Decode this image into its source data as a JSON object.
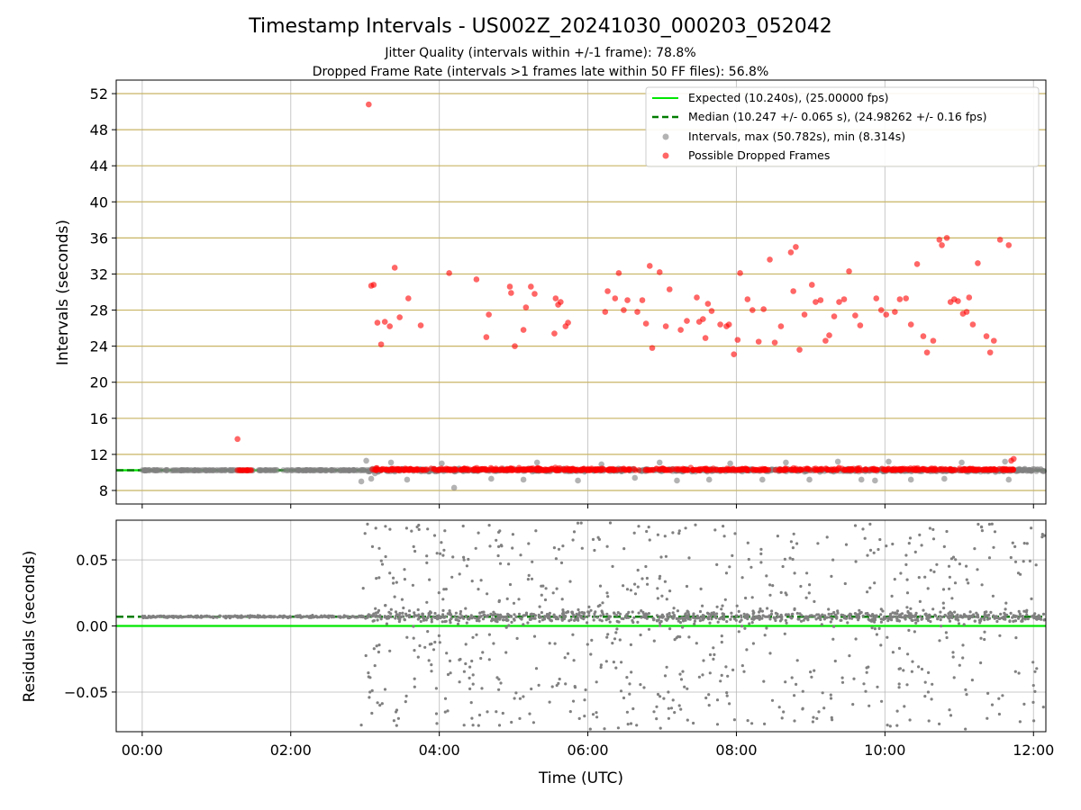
{
  "title": "Timestamp Intervals - US002Z_20241030_000203_052042",
  "subtitle1": "Jitter Quality (intervals within +/-1 frame): 78.8%",
  "subtitle2": "Dropped Frame Rate (intervals >1 frames late within 50 FF files): 56.8%",
  "colors": {
    "expected": "#00e600",
    "median": "#007d00",
    "intervals": "#808080",
    "dropped": "#ff0000",
    "gridline": "#c8b464"
  },
  "chart_data": [
    {
      "type": "scatter",
      "ylabel": "Intervals (seconds)",
      "xlim": [
        "-00:21",
        "12:10"
      ],
      "ylim": [
        6.5,
        53.5
      ],
      "y_ticks": [
        "8",
        "12",
        "16",
        "20",
        "24",
        "28",
        "32",
        "36",
        "40",
        "44",
        "48",
        "52"
      ],
      "grid": true,
      "legend_position": "top-right",
      "legend": [
        "Expected (10.240s), (25.00000 fps)",
        "Median (10.247 +/- 0.065 s), (24.98262 +/- 0.16 fps)",
        "Intervals, max (50.782s), min (8.314s)",
        "Possible Dropped Frames"
      ],
      "series": [
        {
          "name": "Expected (10.240s), (25.00000 fps)",
          "kind": "hline",
          "y": 10.24
        },
        {
          "name": "Median (10.247 +/- 0.065 s), (24.98262 +/- 0.16 fps)",
          "kind": "hline",
          "y": 10.247
        },
        {
          "name": "Intervals, max (50.782s), min (8.314s)",
          "kind": "scatter",
          "band": {
            "x_from": "00:00",
            "x_to": "12:10",
            "y": 10.24
          },
          "x": [
            "02:57",
            "03:01",
            "03:05",
            "03:08",
            "03:21",
            "03:34",
            "04:02",
            "04:12",
            "04:42",
            "05:08",
            "05:19",
            "05:52",
            "06:11",
            "06:38",
            "06:58",
            "07:12",
            "07:38",
            "07:55",
            "08:21",
            "08:40",
            "08:59",
            "09:22",
            "09:41",
            "09:52",
            "10:03",
            "10:21",
            "10:48",
            "11:02",
            "11:37",
            "11:40"
          ],
          "y": [
            9.0,
            11.3,
            9.3,
            9.9,
            11.1,
            9.2,
            11.0,
            8.3,
            9.3,
            9.2,
            11.1,
            9.1,
            10.9,
            9.4,
            11.1,
            9.1,
            9.2,
            11.0,
            9.2,
            11.1,
            9.2,
            11.2,
            9.2,
            9.1,
            11.2,
            9.2,
            9.3,
            11.1,
            11.2,
            9.2
          ]
        },
        {
          "name": "Possible Dropped Frames",
          "kind": "scatter",
          "band": {
            "segments": [
              [
                "01:17",
                "01:28"
              ],
              [
                "03:04",
                "11:44"
              ]
            ],
            "y": 10.24
          },
          "x": [
            "01:17",
            "03:03",
            "03:05",
            "03:07",
            "03:10",
            "03:13",
            "03:16",
            "03:20",
            "03:24",
            "03:28",
            "03:35",
            "03:45",
            "04:08",
            "04:30",
            "04:38",
            "04:40",
            "04:57",
            "04:58",
            "05:01",
            "05:08",
            "05:10",
            "05:14",
            "05:17",
            "05:33",
            "05:34",
            "05:36",
            "05:38",
            "05:42",
            "05:44",
            "06:14",
            "06:16",
            "06:22",
            "06:25",
            "06:29",
            "06:32",
            "06:40",
            "06:44",
            "06:47",
            "06:50",
            "06:52",
            "06:58",
            "07:03",
            "07:06",
            "07:15",
            "07:20",
            "07:28",
            "07:30",
            "07:33",
            "07:35",
            "07:37",
            "07:40",
            "07:47",
            "07:52",
            "07:54",
            "07:58",
            "08:01",
            "08:03",
            "08:09",
            "08:13",
            "08:18",
            "08:22",
            "08:27",
            "08:31",
            "08:36",
            "08:44",
            "08:46",
            "08:48",
            "08:51",
            "08:55",
            "09:01",
            "09:04",
            "09:08",
            "09:12",
            "09:15",
            "09:19",
            "09:23",
            "09:27",
            "09:31",
            "09:36",
            "09:40",
            "09:53",
            "09:57",
            "10:01",
            "10:08",
            "10:12",
            "10:17",
            "10:21",
            "10:26",
            "10:31",
            "10:34",
            "10:39",
            "10:44",
            "10:46",
            "10:50",
            "10:53",
            "10:56",
            "10:59",
            "11:03",
            "11:06",
            "11:08",
            "11:11",
            "11:15",
            "11:22",
            "11:25",
            "11:28",
            "11:33",
            "11:40",
            "11:42",
            "11:44"
          ],
          "y": [
            13.7,
            50.8,
            30.7,
            30.8,
            26.6,
            24.2,
            26.7,
            26.2,
            32.7,
            27.2,
            29.3,
            26.3,
            32.1,
            31.4,
            25.0,
            27.5,
            30.6,
            29.9,
            24.0,
            25.8,
            28.3,
            30.6,
            29.8,
            25.4,
            29.3,
            28.6,
            28.9,
            26.2,
            26.6,
            27.8,
            30.1,
            29.3,
            32.1,
            28.0,
            29.1,
            27.8,
            29.1,
            26.5,
            32.9,
            23.8,
            32.2,
            26.2,
            30.3,
            25.8,
            26.8,
            29.4,
            26.7,
            27.0,
            24.9,
            28.7,
            27.9,
            26.4,
            26.2,
            26.4,
            23.1,
            24.7,
            32.1,
            29.2,
            28.0,
            24.5,
            28.1,
            33.6,
            24.4,
            26.2,
            34.4,
            30.1,
            35.0,
            23.6,
            27.5,
            30.8,
            28.9,
            29.1,
            24.6,
            25.2,
            27.3,
            28.9,
            29.2,
            32.3,
            27.4,
            26.3,
            29.3,
            28.0,
            27.5,
            27.8,
            29.2,
            29.3,
            26.4,
            33.1,
            25.1,
            23.3,
            24.6,
            35.8,
            35.2,
            36.0,
            28.9,
            29.2,
            29.0,
            27.6,
            27.8,
            29.4,
            26.4,
            33.2,
            25.1,
            23.3,
            24.6,
            35.8,
            35.2,
            11.3,
            11.5
          ]
        }
      ]
    },
    {
      "type": "scatter",
      "xlabel": "Time (UTC)",
      "ylabel": "Residuals (seconds)",
      "xlim": [
        "-00:21",
        "12:10"
      ],
      "ylim": [
        -0.08,
        0.08
      ],
      "x_ticks": [
        "00:00",
        "02:00",
        "04:00",
        "06:00",
        "08:00",
        "10:00",
        "12:00"
      ],
      "y_ticks": [
        "0.05",
        "0.00",
        "−0.05"
      ],
      "grid": true,
      "series": [
        {
          "kind": "hline",
          "y": 0.0,
          "role": "expected"
        },
        {
          "kind": "hline",
          "y": 0.007,
          "role": "median"
        },
        {
          "kind": "scatter",
          "cluster": {
            "x_from": "00:00",
            "x_to": "12:10",
            "y": 0.007,
            "spread": 0.006
          },
          "x": [
            "02:57",
            "03:00",
            "03:02",
            "03:04",
            "03:06",
            "03:08",
            "03:12",
            "03:20",
            "03:25",
            "03:30",
            "03:40",
            "03:52",
            "04:05",
            "04:20",
            "04:35",
            "04:48",
            "05:05",
            "05:18",
            "05:35",
            "05:48",
            "06:02",
            "06:20",
            "06:35",
            "06:50",
            "07:05",
            "07:20",
            "07:38",
            "07:52",
            "08:05",
            "08:20",
            "08:38",
            "08:52",
            "09:05",
            "09:18",
            "09:35",
            "09:48",
            "10:02",
            "10:18",
            "10:35",
            "10:48",
            "11:05",
            "11:18",
            "11:32",
            "11:45",
            "12:00"
          ],
          "y": [
            -0.075,
            0.07,
            0.077,
            -0.05,
            0.06,
            -0.03,
            -0.06,
            0.04,
            -0.065,
            0.02,
            -0.04,
            0.035,
            -0.055,
            0.05,
            -0.02,
            0.06,
            -0.07,
            0.072,
            -0.045,
            0.065,
            -0.078,
            0.045,
            -0.035,
            0.065,
            -0.05,
            0.03,
            -0.06,
            0.04,
            -0.03,
            0.058,
            -0.065,
            0.03,
            -0.07,
            0.05,
            -0.04,
            0.077,
            -0.075,
            0.035,
            -0.05,
            0.06,
            -0.078,
            0.075,
            -0.055,
            0.06,
            -0.045
          ]
        }
      ]
    }
  ]
}
